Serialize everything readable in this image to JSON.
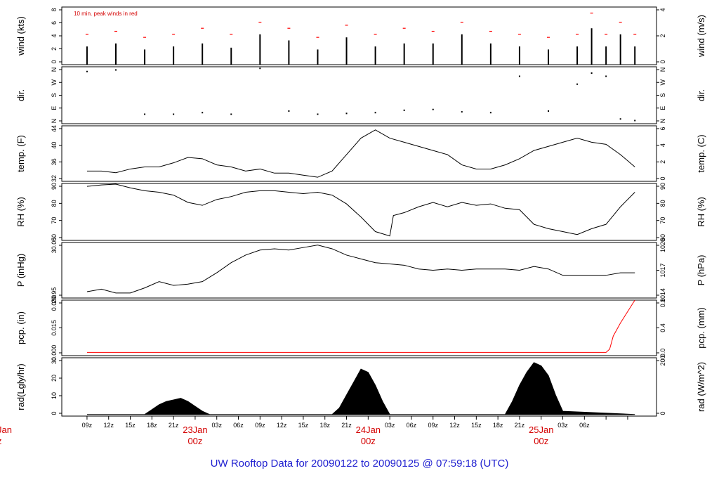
{
  "footer_title": "UW Rooftop Data for 20090122  to  20090125 @ 07:59:18  (UTC)",
  "colors": {
    "axis": "#000000",
    "peak": "#ff0000",
    "date": "#d40000",
    "title": "#1f1fd0"
  },
  "time_axis": {
    "hour_labels": [
      "09z",
      "12z",
      "15z",
      "18z",
      "21z",
      "03z",
      "06z",
      "09z",
      "12z",
      "15z",
      "18z",
      "21z",
      "03z",
      "06z",
      "09z",
      "12z",
      "15z",
      "18z",
      "21z",
      "03z",
      "06z"
    ],
    "date_labels": [
      {
        "day": "23Jan",
        "time": "00z"
      },
      {
        "day": "24Jan",
        "time": "00z"
      },
      {
        "day": "25Jan",
        "time": "00z"
      }
    ],
    "clipped_left_date": {
      "day": "Jan",
      "time": "z"
    }
  },
  "chart_data": [
    {
      "id": "wind",
      "type": "bar",
      "ylabel_left": "wind (kts)",
      "ylabel_right": "wind (m/s)",
      "annotation": "10 min. peak winds in red",
      "y_ticks_left": [
        "0",
        "2",
        "4",
        "6",
        "8"
      ],
      "y_ticks_right": [
        "0",
        "2",
        "4"
      ],
      "ylim": [
        0,
        9.5
      ],
      "series": [
        {
          "style": "bars",
          "color": "#000000",
          "t_hours": [
            0,
            4,
            8,
            12,
            16,
            20,
            24,
            28,
            32,
            36,
            40,
            44,
            48,
            52,
            56,
            60,
            64,
            68,
            70,
            72,
            74,
            76
          ],
          "values": [
            3,
            3.5,
            2.5,
            3,
            3.5,
            2.8,
            5,
            4,
            2.5,
            4.5,
            3,
            3.5,
            3.5,
            5,
            3.5,
            3,
            2.5,
            3,
            6,
            3,
            5,
            3
          ]
        },
        {
          "style": "peaks",
          "color": "#ff0000",
          "t_hours": [
            0,
            4,
            8,
            12,
            16,
            20,
            24,
            28,
            32,
            36,
            40,
            44,
            48,
            52,
            56,
            60,
            64,
            68,
            70,
            72,
            74,
            76
          ],
          "values": [
            5,
            5.5,
            4.5,
            5,
            6,
            5,
            7,
            6,
            4.5,
            6.5,
            5,
            6,
            5.5,
            7,
            5.5,
            5,
            4.5,
            5,
            8.5,
            5,
            7,
            5
          ]
        }
      ]
    },
    {
      "id": "dir",
      "type": "scatter",
      "ylabel_left": "dir.",
      "ylabel_right": "dir.",
      "y_ticks_left": [
        "N",
        "E",
        "S",
        "W",
        "N"
      ],
      "y_ticks_right": [
        "N",
        "E",
        "S",
        "W",
        "N"
      ],
      "ylim": [
        0,
        360
      ],
      "series": [
        {
          "color": "#000000",
          "t_hours": [
            0,
            4,
            8,
            12,
            16,
            20,
            24,
            28,
            32,
            36,
            40,
            44,
            48,
            52,
            56,
            60,
            64,
            68,
            70,
            72,
            74,
            76
          ],
          "values": [
            330,
            340,
            60,
            60,
            70,
            60,
            350,
            80,
            60,
            65,
            70,
            85,
            90,
            75,
            70,
            300,
            80,
            250,
            320,
            300,
            30,
            20
          ]
        }
      ]
    },
    {
      "id": "temp",
      "type": "line",
      "ylabel_left": "temp. (F)",
      "ylabel_right": "temp. (C)",
      "y_ticks_left": [
        "32",
        "36",
        "40",
        "44"
      ],
      "y_ticks_right": [
        "0",
        "2",
        "4",
        "6"
      ],
      "ylim": [
        31.5,
        45
      ],
      "series": [
        {
          "color": "#000000",
          "t_hours": [
            0,
            2,
            4,
            6,
            8,
            10,
            12,
            14,
            16,
            18,
            20,
            22,
            24,
            26,
            28,
            30,
            32,
            34,
            36,
            38,
            40,
            42,
            44,
            46,
            48,
            50,
            52,
            54,
            56,
            58,
            60,
            62,
            64,
            66,
            68,
            70,
            72,
            74,
            76
          ],
          "values": [
            34,
            34,
            33.6,
            34.5,
            35,
            35,
            36,
            37.3,
            37,
            35.5,
            35,
            34,
            34.5,
            33.5,
            33.5,
            33,
            32.5,
            34,
            38,
            42,
            44,
            42,
            41,
            40,
            39,
            38,
            35.5,
            34.5,
            34.5,
            35.5,
            37,
            39,
            40,
            41,
            42,
            41,
            40.5,
            38,
            35
          ]
        }
      ]
    },
    {
      "id": "rh",
      "type": "line",
      "ylabel_left": "RH (%)",
      "ylabel_right": "RH (%)",
      "y_ticks_left": [
        "60",
        "70",
        "80",
        "90"
      ],
      "y_ticks_right": [
        "60",
        "70",
        "80",
        "90"
      ],
      "ylim": [
        54,
        93
      ],
      "series": [
        {
          "color": "#000000",
          "t_hours": [
            0,
            2,
            4,
            6,
            8,
            10,
            12,
            14,
            16,
            18,
            20,
            22,
            24,
            26,
            28,
            30,
            32,
            34,
            36,
            38,
            40,
            42,
            42.5,
            44,
            46,
            48,
            50,
            52,
            54,
            56,
            58,
            60,
            62,
            64,
            66,
            68,
            70,
            72,
            74,
            76
          ],
          "values": [
            91,
            92,
            92.5,
            90,
            88,
            87,
            85,
            80,
            78,
            82,
            84,
            87,
            88,
            88,
            87,
            86,
            87,
            85,
            79,
            70,
            60,
            57,
            71,
            73,
            77,
            80,
            77,
            80,
            78,
            79,
            76,
            75,
            65,
            62,
            60,
            58,
            62,
            65,
            77,
            87
          ]
        }
      ]
    },
    {
      "id": "pressure",
      "type": "line",
      "ylabel_left": "P (inHg)",
      "ylabel_right": "P (hPa)",
      "y_ticks_left": [
        "29.95",
        "30.05"
      ],
      "y_ticks_right": [
        "1014",
        "1017",
        "1020"
      ],
      "ylim": [
        29.93,
        30.15
      ],
      "series": [
        {
          "color": "#000000",
          "t_hours": [
            0,
            2,
            4,
            6,
            8,
            10,
            12,
            14,
            16,
            18,
            20,
            22,
            24,
            26,
            28,
            30,
            32,
            34,
            36,
            38,
            40,
            42,
            44,
            46,
            48,
            50,
            52,
            54,
            56,
            58,
            60,
            62,
            64,
            66,
            68,
            70,
            72,
            74,
            76
          ],
          "values": [
            29.955,
            29.965,
            29.95,
            29.95,
            29.97,
            29.995,
            29.98,
            29.985,
            29.995,
            30.03,
            30.07,
            30.1,
            30.12,
            30.125,
            30.12,
            30.13,
            30.14,
            30.125,
            30.1,
            30.085,
            30.07,
            30.065,
            30.06,
            30.045,
            30.04,
            30.045,
            30.04,
            30.045,
            30.045,
            30.045,
            30.04,
            30.055,
            30.045,
            30.02,
            30.02,
            30.02,
            30.02,
            30.03,
            30.03
          ]
        }
      ]
    },
    {
      "id": "precip",
      "type": "line",
      "ylabel_left": "pcp. (in)",
      "ylabel_right": "pcp. (mm)",
      "y_ticks_left": [
        "0.000",
        "0.015",
        "0.030"
      ],
      "y_ticks_right": [
        "0.0",
        "0.4",
        "0.8"
      ],
      "ylim": [
        -0.002,
        0.032
      ],
      "series": [
        {
          "color": "#ff0000",
          "t_hours": [
            0,
            60,
            72,
            72.5,
            73,
            74,
            75,
            76
          ],
          "values": [
            0,
            0,
            0,
            0.002,
            0.01,
            0.018,
            0.025,
            0.032
          ]
        }
      ]
    },
    {
      "id": "radiation",
      "type": "area",
      "ylabel_left": "rad(Lgly/hr)",
      "ylabel_right": "rad (W/m^2)",
      "y_ticks_left": [
        "0",
        "10",
        "20",
        "30"
      ],
      "y_ticks_right": [
        "0",
        "200"
      ],
      "ylim": [
        -1,
        35
      ],
      "series": [
        {
          "color": "#000000",
          "t_hours": [
            0,
            8,
            9,
            10,
            11,
            12,
            13,
            14,
            15,
            16,
            17,
            34,
            35,
            36,
            37,
            38,
            39,
            40,
            41,
            42,
            58,
            59,
            60,
            61,
            62,
            63,
            64,
            65,
            66,
            76
          ],
          "values": [
            0,
            0,
            3,
            6,
            8,
            9,
            10,
            8,
            5,
            2,
            0,
            0,
            4,
            12,
            20,
            28,
            26,
            18,
            8,
            0,
            0,
            8,
            18,
            26,
            32,
            30,
            24,
            12,
            2,
            0
          ]
        }
      ]
    }
  ]
}
